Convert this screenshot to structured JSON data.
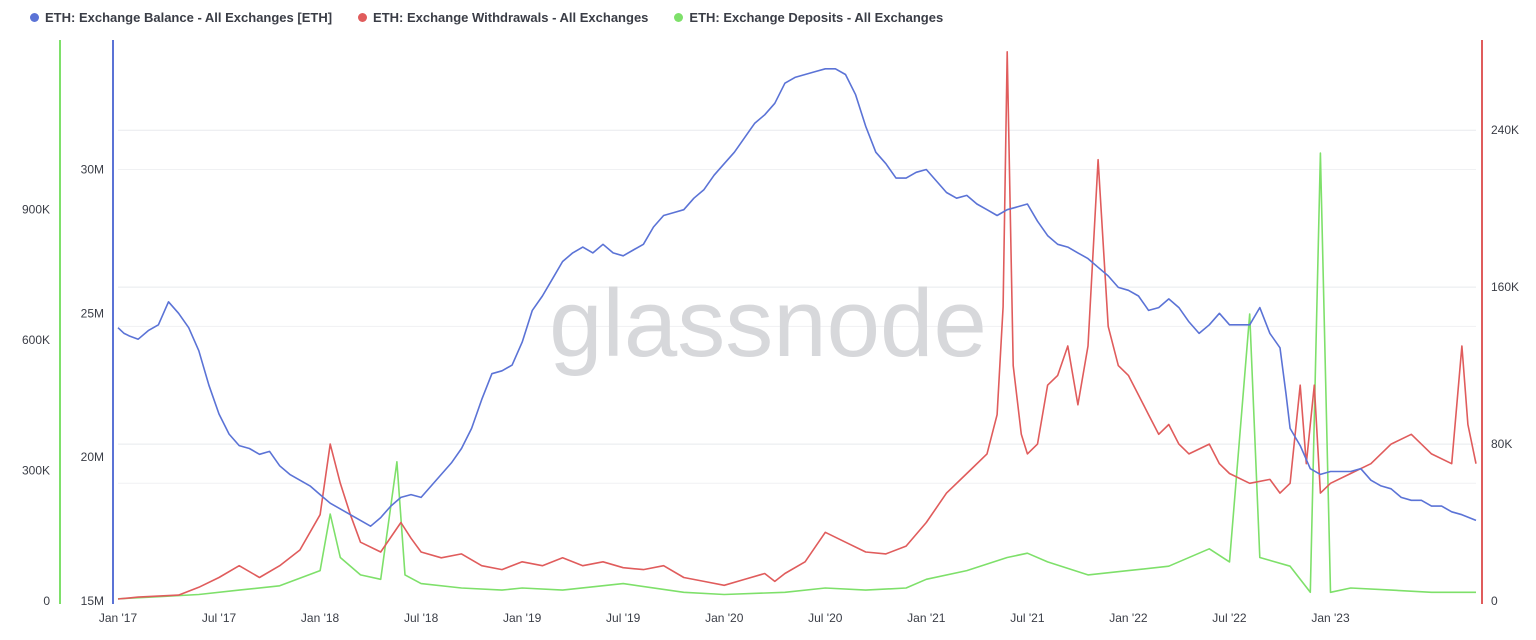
{
  "legend": {
    "balance": "ETH: Exchange Balance - All Exchanges [ETH]",
    "withdrawals": "ETH: Exchange Withdrawals - All Exchanges",
    "deposits": "ETH: Exchange Deposits - All Exchanges"
  },
  "watermark": "glassnode",
  "colors": {
    "balance": "#5b73d6",
    "withdrawals": "#e05c5c",
    "deposits": "#7ee06a",
    "grid": "#e8eaed",
    "text": "#3a3d46"
  },
  "chart_data": {
    "type": "line",
    "title": "",
    "x_ticks": [
      "Jan '17",
      "Jul '17",
      "Jan '18",
      "Jul '18",
      "Jan '19",
      "Jul '19",
      "Jan '20",
      "Jul '20",
      "Jan '21",
      "Jul '21",
      "Jan '22",
      "Jul '22",
      "Jan '23"
    ],
    "x_range": [
      2017.0,
      2023.72
    ],
    "axes": {
      "deposits_left": {
        "ticks": [
          "0",
          "300K",
          "600K",
          "900K"
        ],
        "range": [
          0,
          1290000
        ]
      },
      "balance_left": {
        "ticks": [
          "15M",
          "20M",
          "25M",
          "30M"
        ],
        "range": [
          15000000,
          34500000
        ]
      },
      "withdrawals_right": {
        "ticks": [
          "0",
          "80K",
          "160K",
          "240K"
        ],
        "range": [
          0,
          286000
        ]
      }
    },
    "series": [
      {
        "name": "ETH: Exchange Balance - All Exchanges [ETH]",
        "axis": "balance_left",
        "points": [
          [
            2017.0,
            24.5
          ],
          [
            2017.03,
            24.3
          ],
          [
            2017.06,
            24.2
          ],
          [
            2017.1,
            24.1
          ],
          [
            2017.15,
            24.4
          ],
          [
            2017.2,
            24.6
          ],
          [
            2017.25,
            25.4
          ],
          [
            2017.3,
            25.0
          ],
          [
            2017.35,
            24.5
          ],
          [
            2017.4,
            23.7
          ],
          [
            2017.45,
            22.5
          ],
          [
            2017.5,
            21.5
          ],
          [
            2017.55,
            20.8
          ],
          [
            2017.6,
            20.4
          ],
          [
            2017.65,
            20.3
          ],
          [
            2017.7,
            20.1
          ],
          [
            2017.75,
            20.2
          ],
          [
            2017.8,
            19.7
          ],
          [
            2017.85,
            19.4
          ],
          [
            2017.9,
            19.2
          ],
          [
            2017.95,
            19.0
          ],
          [
            2018.0,
            18.7
          ],
          [
            2018.05,
            18.4
          ],
          [
            2018.1,
            18.2
          ],
          [
            2018.15,
            18.0
          ],
          [
            2018.2,
            17.8
          ],
          [
            2018.25,
            17.6
          ],
          [
            2018.3,
            17.9
          ],
          [
            2018.35,
            18.3
          ],
          [
            2018.4,
            18.6
          ],
          [
            2018.45,
            18.7
          ],
          [
            2018.5,
            18.6
          ],
          [
            2018.55,
            19.0
          ],
          [
            2018.6,
            19.4
          ],
          [
            2018.65,
            19.8
          ],
          [
            2018.7,
            20.3
          ],
          [
            2018.75,
            21.0
          ],
          [
            2018.8,
            22.0
          ],
          [
            2018.85,
            22.9
          ],
          [
            2018.9,
            23.0
          ],
          [
            2018.95,
            23.2
          ],
          [
            2019.0,
            24.0
          ],
          [
            2019.05,
            25.1
          ],
          [
            2019.1,
            25.6
          ],
          [
            2019.15,
            26.2
          ],
          [
            2019.2,
            26.8
          ],
          [
            2019.25,
            27.1
          ],
          [
            2019.3,
            27.3
          ],
          [
            2019.35,
            27.1
          ],
          [
            2019.4,
            27.4
          ],
          [
            2019.45,
            27.1
          ],
          [
            2019.5,
            27.0
          ],
          [
            2019.55,
            27.2
          ],
          [
            2019.6,
            27.4
          ],
          [
            2019.65,
            28.0
          ],
          [
            2019.7,
            28.4
          ],
          [
            2019.75,
            28.5
          ],
          [
            2019.8,
            28.6
          ],
          [
            2019.85,
            29.0
          ],
          [
            2019.9,
            29.3
          ],
          [
            2019.95,
            29.8
          ],
          [
            2020.0,
            30.2
          ],
          [
            2020.05,
            30.6
          ],
          [
            2020.1,
            31.1
          ],
          [
            2020.15,
            31.6
          ],
          [
            2020.2,
            31.9
          ],
          [
            2020.25,
            32.3
          ],
          [
            2020.3,
            33.0
          ],
          [
            2020.35,
            33.2
          ],
          [
            2020.4,
            33.3
          ],
          [
            2020.45,
            33.4
          ],
          [
            2020.5,
            33.5
          ],
          [
            2020.55,
            33.5
          ],
          [
            2020.6,
            33.3
          ],
          [
            2020.65,
            32.6
          ],
          [
            2020.7,
            31.5
          ],
          [
            2020.75,
            30.6
          ],
          [
            2020.8,
            30.2
          ],
          [
            2020.85,
            29.7
          ],
          [
            2020.9,
            29.7
          ],
          [
            2020.95,
            29.9
          ],
          [
            2021.0,
            30.0
          ],
          [
            2021.05,
            29.6
          ],
          [
            2021.1,
            29.2
          ],
          [
            2021.15,
            29.0
          ],
          [
            2021.2,
            29.1
          ],
          [
            2021.25,
            28.8
          ],
          [
            2021.3,
            28.6
          ],
          [
            2021.35,
            28.4
          ],
          [
            2021.4,
            28.6
          ],
          [
            2021.45,
            28.7
          ],
          [
            2021.5,
            28.8
          ],
          [
            2021.55,
            28.2
          ],
          [
            2021.6,
            27.7
          ],
          [
            2021.65,
            27.4
          ],
          [
            2021.7,
            27.3
          ],
          [
            2021.75,
            27.1
          ],
          [
            2021.8,
            26.9
          ],
          [
            2021.85,
            26.6
          ],
          [
            2021.9,
            26.3
          ],
          [
            2021.95,
            25.9
          ],
          [
            2022.0,
            25.8
          ],
          [
            2022.05,
            25.6
          ],
          [
            2022.1,
            25.1
          ],
          [
            2022.15,
            25.2
          ],
          [
            2022.2,
            25.5
          ],
          [
            2022.25,
            25.2
          ],
          [
            2022.3,
            24.7
          ],
          [
            2022.35,
            24.3
          ],
          [
            2022.4,
            24.6
          ],
          [
            2022.45,
            25.0
          ],
          [
            2022.5,
            24.6
          ],
          [
            2022.55,
            24.6
          ],
          [
            2022.6,
            24.6
          ],
          [
            2022.65,
            25.2
          ],
          [
            2022.7,
            24.3
          ],
          [
            2022.75,
            23.8
          ],
          [
            2022.78,
            22.2
          ],
          [
            2022.8,
            21.0
          ],
          [
            2022.85,
            20.4
          ],
          [
            2022.9,
            19.6
          ],
          [
            2022.95,
            19.4
          ],
          [
            2023.0,
            19.5
          ],
          [
            2023.05,
            19.5
          ],
          [
            2023.1,
            19.5
          ],
          [
            2023.15,
            19.6
          ],
          [
            2023.2,
            19.2
          ],
          [
            2023.25,
            19.0
          ],
          [
            2023.3,
            18.9
          ],
          [
            2023.35,
            18.6
          ],
          [
            2023.4,
            18.5
          ],
          [
            2023.45,
            18.5
          ],
          [
            2023.5,
            18.3
          ],
          [
            2023.55,
            18.3
          ],
          [
            2023.6,
            18.1
          ],
          [
            2023.65,
            18.0
          ],
          [
            2023.72,
            17.8
          ]
        ]
      },
      {
        "name": "ETH: Exchange Withdrawals - All Exchanges",
        "axis": "withdrawals_right",
        "points": [
          [
            2017.0,
            1000
          ],
          [
            2017.1,
            2000
          ],
          [
            2017.2,
            2500
          ],
          [
            2017.3,
            3000
          ],
          [
            2017.4,
            7000
          ],
          [
            2017.5,
            12000
          ],
          [
            2017.6,
            18000
          ],
          [
            2017.7,
            12000
          ],
          [
            2017.8,
            18000
          ],
          [
            2017.9,
            26000
          ],
          [
            2018.0,
            44000
          ],
          [
            2018.05,
            80000
          ],
          [
            2018.1,
            60000
          ],
          [
            2018.15,
            44000
          ],
          [
            2018.2,
            30000
          ],
          [
            2018.3,
            25000
          ],
          [
            2018.4,
            40000
          ],
          [
            2018.45,
            32000
          ],
          [
            2018.5,
            25000
          ],
          [
            2018.6,
            22000
          ],
          [
            2018.7,
            24000
          ],
          [
            2018.8,
            18000
          ],
          [
            2018.9,
            16000
          ],
          [
            2019.0,
            20000
          ],
          [
            2019.1,
            18000
          ],
          [
            2019.2,
            22000
          ],
          [
            2019.3,
            18000
          ],
          [
            2019.4,
            20000
          ],
          [
            2019.5,
            17000
          ],
          [
            2019.6,
            16000
          ],
          [
            2019.7,
            18000
          ],
          [
            2019.8,
            12000
          ],
          [
            2019.9,
            10000
          ],
          [
            2020.0,
            8000
          ],
          [
            2020.1,
            11000
          ],
          [
            2020.2,
            14000
          ],
          [
            2020.25,
            10000
          ],
          [
            2020.3,
            14000
          ],
          [
            2020.4,
            20000
          ],
          [
            2020.5,
            35000
          ],
          [
            2020.6,
            30000
          ],
          [
            2020.7,
            25000
          ],
          [
            2020.8,
            24000
          ],
          [
            2020.9,
            28000
          ],
          [
            2021.0,
            40000
          ],
          [
            2021.1,
            55000
          ],
          [
            2021.2,
            65000
          ],
          [
            2021.3,
            75000
          ],
          [
            2021.35,
            95000
          ],
          [
            2021.38,
            150000
          ],
          [
            2021.4,
            280000
          ],
          [
            2021.43,
            120000
          ],
          [
            2021.47,
            85000
          ],
          [
            2021.5,
            75000
          ],
          [
            2021.55,
            80000
          ],
          [
            2021.6,
            110000
          ],
          [
            2021.65,
            115000
          ],
          [
            2021.7,
            130000
          ],
          [
            2021.75,
            100000
          ],
          [
            2021.8,
            130000
          ],
          [
            2021.85,
            225000
          ],
          [
            2021.9,
            140000
          ],
          [
            2021.95,
            120000
          ],
          [
            2022.0,
            115000
          ],
          [
            2022.05,
            105000
          ],
          [
            2022.1,
            95000
          ],
          [
            2022.15,
            85000
          ],
          [
            2022.2,
            90000
          ],
          [
            2022.25,
            80000
          ],
          [
            2022.3,
            75000
          ],
          [
            2022.4,
            80000
          ],
          [
            2022.45,
            70000
          ],
          [
            2022.5,
            65000
          ],
          [
            2022.6,
            60000
          ],
          [
            2022.7,
            62000
          ],
          [
            2022.75,
            55000
          ],
          [
            2022.8,
            60000
          ],
          [
            2022.85,
            110000
          ],
          [
            2022.88,
            70000
          ],
          [
            2022.92,
            110000
          ],
          [
            2022.95,
            55000
          ],
          [
            2023.0,
            60000
          ],
          [
            2023.1,
            65000
          ],
          [
            2023.2,
            70000
          ],
          [
            2023.3,
            80000
          ],
          [
            2023.4,
            85000
          ],
          [
            2023.5,
            75000
          ],
          [
            2023.6,
            70000
          ],
          [
            2023.65,
            130000
          ],
          [
            2023.68,
            90000
          ],
          [
            2023.72,
            70000
          ]
        ]
      },
      {
        "name": "ETH: Exchange Deposits - All Exchanges",
        "axis": "deposits_left",
        "points": [
          [
            2017.0,
            5000
          ],
          [
            2017.2,
            10000
          ],
          [
            2017.4,
            15000
          ],
          [
            2017.6,
            25000
          ],
          [
            2017.8,
            35000
          ],
          [
            2018.0,
            70000
          ],
          [
            2018.05,
            200000
          ],
          [
            2018.1,
            100000
          ],
          [
            2018.2,
            60000
          ],
          [
            2018.3,
            50000
          ],
          [
            2018.38,
            320000
          ],
          [
            2018.42,
            60000
          ],
          [
            2018.5,
            40000
          ],
          [
            2018.7,
            30000
          ],
          [
            2018.9,
            25000
          ],
          [
            2019.0,
            30000
          ],
          [
            2019.2,
            25000
          ],
          [
            2019.5,
            40000
          ],
          [
            2019.8,
            20000
          ],
          [
            2020.0,
            15000
          ],
          [
            2020.3,
            20000
          ],
          [
            2020.5,
            30000
          ],
          [
            2020.7,
            25000
          ],
          [
            2020.9,
            30000
          ],
          [
            2021.0,
            50000
          ],
          [
            2021.2,
            70000
          ],
          [
            2021.4,
            100000
          ],
          [
            2021.5,
            110000
          ],
          [
            2021.6,
            90000
          ],
          [
            2021.8,
            60000
          ],
          [
            2022.0,
            70000
          ],
          [
            2022.2,
            80000
          ],
          [
            2022.4,
            120000
          ],
          [
            2022.5,
            90000
          ],
          [
            2022.6,
            660000
          ],
          [
            2022.65,
            100000
          ],
          [
            2022.8,
            80000
          ],
          [
            2022.9,
            20000
          ],
          [
            2022.95,
            1030000
          ],
          [
            2023.0,
            20000
          ],
          [
            2023.1,
            30000
          ],
          [
            2023.3,
            25000
          ],
          [
            2023.5,
            20000
          ],
          [
            2023.72,
            20000
          ]
        ]
      }
    ]
  }
}
